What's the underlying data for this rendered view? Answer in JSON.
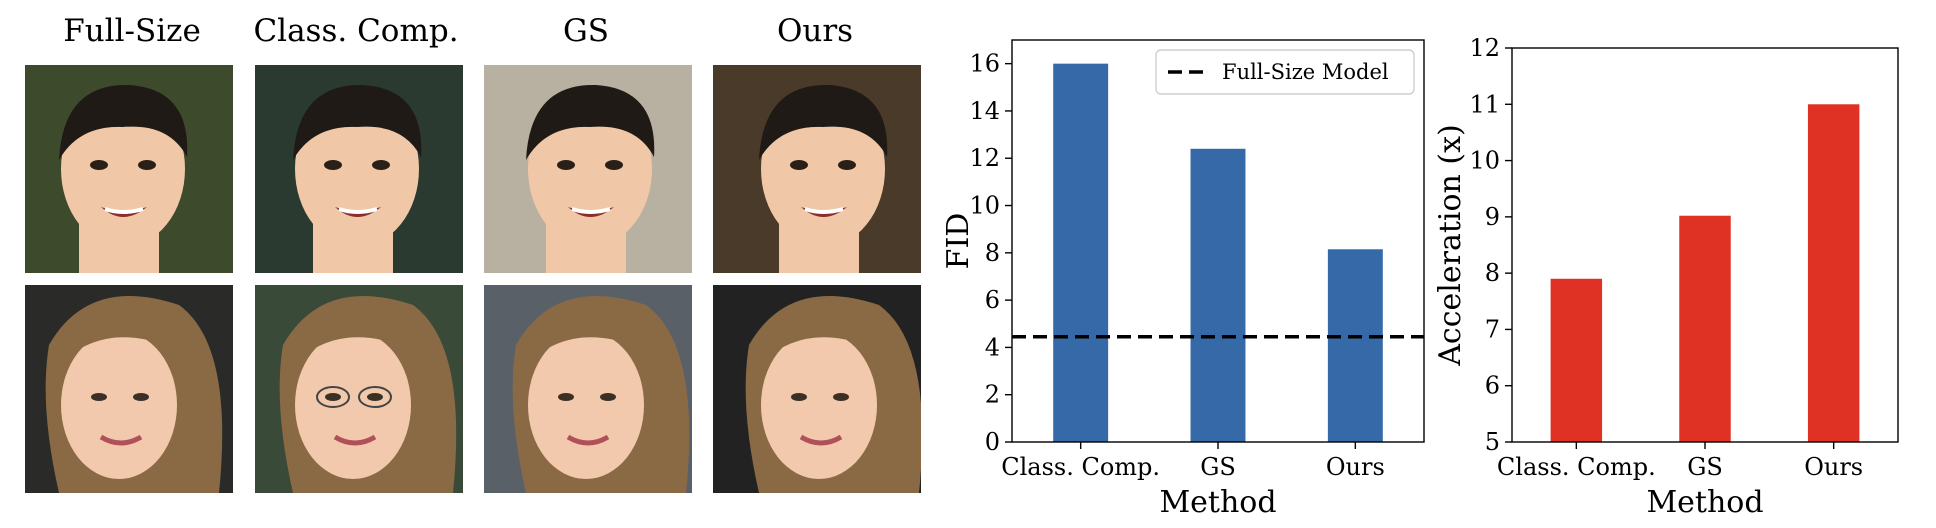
{
  "grid": {
    "columns": [
      {
        "title": "Full-Size"
      },
      {
        "title": "Class. Comp."
      },
      {
        "title": "GS"
      },
      {
        "title": "Ours"
      }
    ],
    "rows": [
      {
        "subject": "young man, dark hair, smiling",
        "skin": "#f0c8a8",
        "hair": "#1f1a16",
        "bg": [
          "#3d4a2c",
          "#2a3a30",
          "#b8b0a0",
          "#4a3a2a"
        ]
      },
      {
        "subject": "young woman, light-brown hair, smiling",
        "skin": "#f2c9ad",
        "hair": "#8a6a45",
        "bg": [
          "#2a2a28",
          "#3a4a38",
          "#5a6068",
          "#222222"
        ]
      }
    ]
  },
  "chart_data": [
    {
      "type": "bar",
      "categories": [
        "Class. Comp.",
        "GS",
        "Ours"
      ],
      "values": [
        16.0,
        12.4,
        8.15
      ],
      "xlabel": "Method",
      "ylabel": "FID",
      "ylim": [
        0,
        17
      ],
      "yticks": [
        0,
        2,
        4,
        6,
        8,
        10,
        12,
        14,
        16
      ],
      "color": "#3569a8",
      "reference_line": {
        "label": "Full-Size Model",
        "value": 4.45,
        "style": "dashed"
      },
      "legend": "top-right",
      "grid": false
    },
    {
      "type": "bar",
      "categories": [
        "Class. Comp.",
        "GS",
        "Ours"
      ],
      "values": [
        7.9,
        9.02,
        11.0
      ],
      "xlabel": "Method",
      "ylabel": "Acceleration (x)",
      "ylim": [
        5,
        12
      ],
      "yticks": [
        5,
        6,
        7,
        8,
        9,
        10,
        11,
        12
      ],
      "color": "#e03224",
      "grid": false
    }
  ]
}
